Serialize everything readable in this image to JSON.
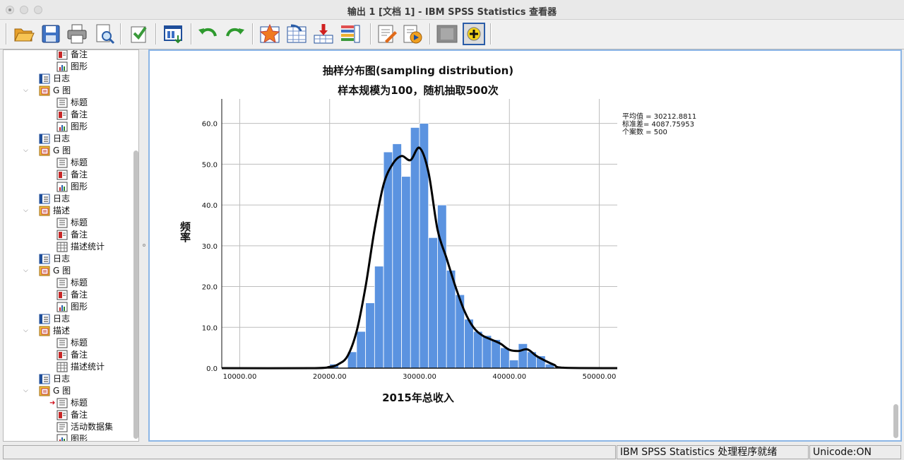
{
  "window": {
    "title": "输出 1 [文档 1] - IBM SPSS Statistics 查看器"
  },
  "toolbar": {
    "buttons": [
      {
        "name": "open-icon"
      },
      {
        "name": "save-icon"
      },
      {
        "name": "print-icon"
      },
      {
        "name": "print-preview-icon"
      },
      {
        "name": "export-icon"
      },
      {
        "name": "recall-dialog-icon"
      },
      {
        "name": "undo-icon"
      },
      {
        "name": "redo-icon"
      },
      {
        "name": "goto-data-icon"
      },
      {
        "name": "goto-case-icon"
      },
      {
        "name": "goto-variable-icon"
      },
      {
        "name": "variables-icon"
      },
      {
        "name": "designate-window-icon"
      },
      {
        "name": "run-script-icon"
      },
      {
        "name": "hide-icon"
      },
      {
        "name": "show-icon"
      }
    ]
  },
  "navigator": {
    "items": [
      {
        "label": "备注",
        "icon": "notes-icon",
        "depth": 2,
        "partial": true
      },
      {
        "label": "图形",
        "icon": "chart-icon",
        "depth": 2
      },
      {
        "label": "日志",
        "icon": "log-icon",
        "depth": 1
      },
      {
        "label": "G 图",
        "icon": "output-folder-icon",
        "depth": 1,
        "twisty": true
      },
      {
        "label": "标题",
        "icon": "title-icon",
        "depth": 2
      },
      {
        "label": "备注",
        "icon": "notes-icon",
        "depth": 2
      },
      {
        "label": "图形",
        "icon": "chart-icon",
        "depth": 2
      },
      {
        "label": "日志",
        "icon": "log-icon",
        "depth": 1
      },
      {
        "label": "G 图",
        "icon": "output-folder-icon",
        "depth": 1,
        "twisty": true
      },
      {
        "label": "标题",
        "icon": "title-icon",
        "depth": 2
      },
      {
        "label": "备注",
        "icon": "notes-icon",
        "depth": 2
      },
      {
        "label": "图形",
        "icon": "chart-icon",
        "depth": 2
      },
      {
        "label": "日志",
        "icon": "log-icon",
        "depth": 1
      },
      {
        "label": "描述",
        "icon": "output-folder-icon",
        "depth": 1,
        "twisty": true
      },
      {
        "label": "标题",
        "icon": "title-icon",
        "depth": 2
      },
      {
        "label": "备注",
        "icon": "notes-icon",
        "depth": 2
      },
      {
        "label": "描述统计",
        "icon": "table-icon",
        "depth": 2
      },
      {
        "label": "日志",
        "icon": "log-icon",
        "depth": 1
      },
      {
        "label": "G 图",
        "icon": "output-folder-icon",
        "depth": 1,
        "twisty": true
      },
      {
        "label": "标题",
        "icon": "title-icon",
        "depth": 2
      },
      {
        "label": "备注",
        "icon": "notes-icon",
        "depth": 2
      },
      {
        "label": "图形",
        "icon": "chart-icon",
        "depth": 2
      },
      {
        "label": "日志",
        "icon": "log-icon",
        "depth": 1
      },
      {
        "label": "描述",
        "icon": "output-folder-icon",
        "depth": 1,
        "twisty": true
      },
      {
        "label": "标题",
        "icon": "title-icon",
        "depth": 2
      },
      {
        "label": "备注",
        "icon": "notes-icon",
        "depth": 2
      },
      {
        "label": "描述统计",
        "icon": "table-icon",
        "depth": 2
      },
      {
        "label": "日志",
        "icon": "log-icon",
        "depth": 1
      },
      {
        "label": "G 图",
        "icon": "output-folder-icon",
        "depth": 1,
        "twisty": true
      },
      {
        "label": "标题",
        "icon": "title-icon",
        "depth": 2,
        "current": true
      },
      {
        "label": "备注",
        "icon": "notes-icon",
        "depth": 2
      },
      {
        "label": "活动数据集",
        "icon": "dataset-icon",
        "depth": 2
      },
      {
        "label": "图形",
        "icon": "chart-icon",
        "depth": 2
      }
    ]
  },
  "chart_data": {
    "type": "bar",
    "title": "抽样分布图(sampling distribution)",
    "subtitle": "样本规模为100，随机抽取500次",
    "xlabel": "2015年总收入",
    "ylabel": "频率",
    "xlim": [
      8000,
      52000
    ],
    "ylim": [
      0,
      66
    ],
    "x_ticks": [
      "10000.00",
      "20000.00",
      "30000.00",
      "40000.00",
      "50000.00"
    ],
    "y_ticks": [
      "0.0",
      "10.0",
      "20.0",
      "30.0",
      "40.0",
      "50.0",
      "60.0"
    ],
    "bin_width": 1000,
    "bin_starts": [
      20000,
      21000,
      22000,
      23000,
      24000,
      25000,
      26000,
      27000,
      28000,
      29000,
      30000,
      31000,
      32000,
      33000,
      34000,
      35000,
      36000,
      37000,
      38000,
      39000,
      40000,
      41000,
      42000,
      43000,
      44000
    ],
    "values": [
      1,
      0,
      4,
      9,
      16,
      25,
      53,
      55,
      47,
      59,
      60,
      32,
      40,
      24,
      18,
      12,
      9,
      8,
      7,
      5,
      2,
      6,
      4,
      3,
      1
    ],
    "density_curve": {
      "x": [
        8000,
        18000,
        20000,
        21000,
        22000,
        23000,
        24000,
        25000,
        26000,
        27000,
        28000,
        29000,
        30000,
        31000,
        32000,
        33000,
        34000,
        35000,
        36000,
        37000,
        38000,
        39000,
        40000,
        41000,
        42000,
        43000,
        44000,
        45000,
        46000,
        52000
      ],
      "y": [
        0,
        0,
        0.3,
        1,
        3,
        9,
        20,
        34,
        45,
        50,
        52,
        51,
        54,
        48,
        34,
        27,
        20,
        14,
        10,
        8,
        7,
        6,
        4.5,
        4.2,
        4.6,
        3,
        1.8,
        0.8,
        0.1,
        0
      ]
    },
    "stats_legend": [
      "平均值 = 30212.8811",
      "标准差= 4087.75953",
      "个案数 = 500"
    ],
    "bar_color": "#5b93e0",
    "curve_color": "#000000",
    "grid": true
  },
  "statusbar": {
    "main": "",
    "state": "IBM SPSS Statistics 处理程序就绪",
    "unicode": "Unicode:ON"
  }
}
